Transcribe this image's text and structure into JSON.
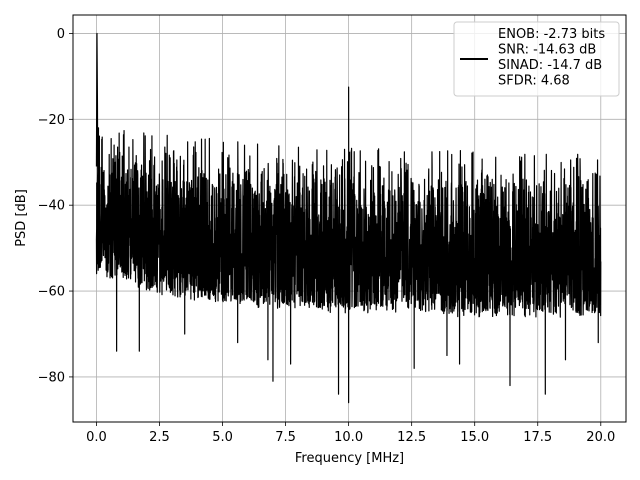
{
  "chart_data": {
    "type": "line",
    "title": "",
    "xlabel": "Frequency [MHz]",
    "ylabel": "PSD [dB]",
    "xlim": [
      -0.93,
      21.0
    ],
    "ylim": [
      -90.5,
      4.3
    ],
    "x_ticks": [
      0.0,
      2.5,
      5.0,
      7.5,
      10.0,
      12.5,
      15.0,
      17.5,
      20.0
    ],
    "x_tick_labels": [
      "0.0",
      "2.5",
      "5.0",
      "7.5",
      "10.0",
      "12.5",
      "15.0",
      "17.5",
      "20.0"
    ],
    "y_ticks": [
      0,
      -20,
      -40,
      -60,
      -80
    ],
    "y_tick_labels": [
      "0",
      "−20",
      "−40",
      "−60",
      "−80"
    ],
    "grid": true,
    "legend_position": "top-right",
    "legend": [
      "ENOB: -2.73 bits",
      "SNR: -14.63 dB",
      "SINAD: -14.7 dB",
      "SFDR: 4.68"
    ],
    "series": [
      {
        "color": "#000000",
        "x_range": [
          0.0,
          20.0
        ],
        "dc_peak": {
          "x": 0.02,
          "y": 0.0
        },
        "spur": {
          "x": 10.0,
          "y": -12.5
        },
        "upper_envelope": [
          [
            0.1,
            -22
          ],
          [
            1.0,
            -24
          ],
          [
            2.5,
            -25
          ],
          [
            5.0,
            -26
          ],
          [
            7.5,
            -27
          ],
          [
            10.0,
            -28
          ],
          [
            12.5,
            -28
          ],
          [
            15.0,
            -29
          ],
          [
            17.5,
            -29
          ],
          [
            20.0,
            -30
          ]
        ],
        "noise_floor": [
          [
            0.1,
            -55
          ],
          [
            2.5,
            -60
          ],
          [
            5.0,
            -62
          ],
          [
            7.5,
            -63
          ],
          [
            10.0,
            -64
          ],
          [
            12.5,
            -64
          ],
          [
            15.0,
            -65
          ],
          [
            17.5,
            -65
          ],
          [
            20.0,
            -65
          ]
        ],
        "deep_nulls": [
          [
            0.8,
            -74
          ],
          [
            1.7,
            -74
          ],
          [
            3.5,
            -70
          ],
          [
            5.6,
            -72
          ],
          [
            6.8,
            -76
          ],
          [
            7.0,
            -81
          ],
          [
            7.7,
            -77
          ],
          [
            9.6,
            -84
          ],
          [
            10.0,
            -86
          ],
          [
            12.6,
            -78
          ],
          [
            13.9,
            -75
          ],
          [
            14.4,
            -77
          ],
          [
            16.4,
            -82
          ],
          [
            17.8,
            -84
          ],
          [
            18.6,
            -76
          ],
          [
            19.9,
            -72
          ]
        ]
      }
    ]
  }
}
